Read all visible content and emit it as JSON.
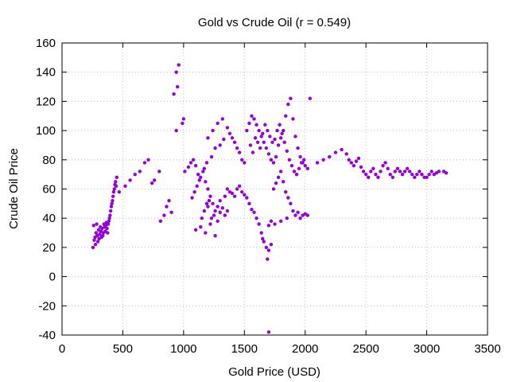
{
  "chart_data": {
    "type": "scatter",
    "title": "Gold vs Crude Oil (r = 0.549)",
    "xlabel": "Gold Price (USD)",
    "ylabel": "Crude Oil Price",
    "xlim": [
      0,
      3500
    ],
    "ylim": [
      -40,
      160
    ],
    "xticks": [
      "0",
      "500",
      "1000",
      "1500",
      "2000",
      "2500",
      "3000",
      "3500"
    ],
    "yticks": [
      "-40",
      "-20",
      "0",
      "20",
      "40",
      "60",
      "80",
      "100",
      "120",
      "140",
      "160"
    ],
    "grid": true,
    "series": [
      {
        "color": "#9400d3",
        "points": [
          [
            255,
            20
          ],
          [
            265,
            25
          ],
          [
            272,
            27
          ],
          [
            280,
            30
          ],
          [
            290,
            28
          ],
          [
            300,
            32
          ],
          [
            310,
            29
          ],
          [
            320,
            31
          ],
          [
            330,
            33
          ],
          [
            340,
            30
          ],
          [
            350,
            34
          ],
          [
            360,
            35
          ],
          [
            370,
            33
          ],
          [
            380,
            36
          ],
          [
            390,
            40
          ],
          [
            400,
            45
          ],
          [
            410,
            50
          ],
          [
            420,
            55
          ],
          [
            430,
            60
          ],
          [
            440,
            65
          ],
          [
            450,
            68
          ],
          [
            260,
            35
          ],
          [
            275,
            22
          ],
          [
            285,
            36
          ],
          [
            295,
            24
          ],
          [
            305,
            26
          ],
          [
            315,
            34
          ],
          [
            325,
            27
          ],
          [
            335,
            28
          ],
          [
            345,
            36
          ],
          [
            355,
            31
          ],
          [
            365,
            37
          ],
          [
            375,
            30
          ],
          [
            385,
            38
          ],
          [
            395,
            42
          ],
          [
            405,
            48
          ],
          [
            415,
            52
          ],
          [
            425,
            58
          ],
          [
            435,
            63
          ],
          [
            445,
            62
          ],
          [
            470,
            58
          ],
          [
            520,
            62
          ],
          [
            560,
            66
          ],
          [
            600,
            70
          ],
          [
            640,
            72
          ],
          [
            680,
            78
          ],
          [
            710,
            80
          ],
          [
            740,
            64
          ],
          [
            760,
            66
          ],
          [
            800,
            72
          ],
          [
            810,
            38
          ],
          [
            840,
            42
          ],
          [
            860,
            48
          ],
          [
            880,
            52
          ],
          [
            900,
            44
          ],
          [
            920,
            125
          ],
          [
            940,
            140
          ],
          [
            960,
            145
          ],
          [
            950,
            130
          ],
          [
            990,
            105
          ],
          [
            1000,
            108
          ],
          [
            940,
            100
          ],
          [
            1010,
            72
          ],
          [
            1040,
            75
          ],
          [
            1060,
            78
          ],
          [
            1080,
            80
          ],
          [
            1100,
            76
          ],
          [
            1120,
            70
          ],
          [
            1140,
            68
          ],
          [
            1160,
            72
          ],
          [
            1180,
            65
          ],
          [
            1200,
            60
          ],
          [
            1220,
            55
          ],
          [
            1240,
            50
          ],
          [
            1260,
            45
          ],
          [
            1280,
            48
          ],
          [
            1300,
            52
          ],
          [
            1320,
            47
          ],
          [
            1340,
            42
          ],
          [
            1360,
            45
          ],
          [
            1100,
            32
          ],
          [
            1140,
            34
          ],
          [
            1180,
            30
          ],
          [
            1220,
            36
          ],
          [
            1260,
            28
          ],
          [
            1200,
            95
          ],
          [
            1240,
            100
          ],
          [
            1280,
            105
          ],
          [
            1320,
            108
          ],
          [
            1360,
            102
          ],
          [
            1380,
            98
          ],
          [
            1400,
            95
          ],
          [
            1420,
            92
          ],
          [
            1440,
            88
          ],
          [
            1460,
            85
          ],
          [
            1480,
            80
          ],
          [
            1500,
            78
          ],
          [
            1200,
            48
          ],
          [
            1230,
            40
          ],
          [
            1250,
            42
          ],
          [
            1150,
            40
          ],
          [
            1170,
            45
          ],
          [
            1190,
            50
          ],
          [
            1210,
            52
          ],
          [
            1280,
            38
          ],
          [
            1300,
            44
          ],
          [
            1340,
            55
          ],
          [
            1360,
            60
          ],
          [
            1380,
            58
          ],
          [
            1400,
            57
          ],
          [
            1420,
            55
          ],
          [
            1440,
            60
          ],
          [
            1460,
            62
          ],
          [
            1480,
            58
          ],
          [
            1500,
            56
          ],
          [
            1520,
            54
          ],
          [
            1540,
            50
          ],
          [
            1560,
            46
          ],
          [
            1580,
            44
          ],
          [
            1600,
            40
          ],
          [
            1620,
            36
          ],
          [
            1640,
            30
          ],
          [
            1660,
            24
          ],
          [
            1680,
            20
          ],
          [
            1700,
            18
          ],
          [
            1720,
            22
          ],
          [
            1650,
            26
          ],
          [
            1690,
            12
          ],
          [
            1700,
            -38
          ],
          [
            1520,
            100
          ],
          [
            1540,
            105
          ],
          [
            1560,
            110
          ],
          [
            1580,
            108
          ],
          [
            1600,
            104
          ],
          [
            1620,
            100
          ],
          [
            1640,
            96
          ],
          [
            1660,
            92
          ],
          [
            1680,
            88
          ],
          [
            1700,
            84
          ],
          [
            1720,
            80
          ],
          [
            1740,
            78
          ],
          [
            1760,
            82
          ],
          [
            1780,
            90
          ],
          [
            1800,
            95
          ],
          [
            1820,
            100
          ],
          [
            1840,
            110
          ],
          [
            1860,
            118
          ],
          [
            1880,
            122
          ],
          [
            1900,
            108
          ],
          [
            1920,
            96
          ],
          [
            1940,
            88
          ],
          [
            1960,
            82
          ],
          [
            1980,
            78
          ],
          [
            2000,
            76
          ],
          [
            2020,
            74
          ],
          [
            2040,
            122
          ],
          [
            1740,
            60
          ],
          [
            1760,
            64
          ],
          [
            1780,
            68
          ],
          [
            1800,
            72
          ],
          [
            1820,
            65
          ],
          [
            1840,
            58
          ],
          [
            1860,
            54
          ],
          [
            1880,
            50
          ],
          [
            1900,
            45
          ],
          [
            1920,
            42
          ],
          [
            1940,
            44
          ],
          [
            1960,
            40
          ],
          [
            1980,
            42
          ],
          [
            2000,
            43
          ],
          [
            2020,
            42
          ],
          [
            1750,
            36
          ],
          [
            1800,
            38
          ],
          [
            1850,
            40
          ],
          [
            1700,
            35
          ],
          [
            1720,
            38
          ],
          [
            2100,
            78
          ],
          [
            2150,
            80
          ],
          [
            2200,
            82
          ],
          [
            2250,
            85
          ],
          [
            2300,
            87
          ],
          [
            2340,
            84
          ],
          [
            2360,
            80
          ],
          [
            2380,
            78
          ],
          [
            2400,
            76
          ],
          [
            2420,
            79
          ],
          [
            2440,
            81
          ],
          [
            2460,
            75
          ],
          [
            2480,
            72
          ],
          [
            2500,
            70
          ],
          [
            2520,
            68
          ],
          [
            2540,
            72
          ],
          [
            2560,
            74
          ],
          [
            2580,
            70
          ],
          [
            2600,
            68
          ],
          [
            2620,
            72
          ],
          [
            2640,
            76
          ],
          [
            2660,
            78
          ],
          [
            2680,
            74
          ],
          [
            2700,
            70
          ],
          [
            2720,
            68
          ],
          [
            2740,
            72
          ],
          [
            2760,
            74
          ],
          [
            2780,
            72
          ],
          [
            2800,
            70
          ],
          [
            2820,
            72
          ],
          [
            2840,
            74
          ],
          [
            2860,
            72
          ],
          [
            2880,
            70
          ],
          [
            2900,
            68
          ],
          [
            2920,
            70
          ],
          [
            2940,
            72
          ],
          [
            2960,
            70
          ],
          [
            2980,
            68
          ],
          [
            3000,
            68
          ],
          [
            3020,
            70
          ],
          [
            3040,
            72
          ],
          [
            3060,
            70
          ],
          [
            3080,
            71
          ],
          [
            3100,
            72
          ],
          [
            3140,
            72
          ],
          [
            3160,
            71
          ],
          [
            1550,
            90
          ],
          [
            1570,
            85
          ],
          [
            1590,
            95
          ],
          [
            1610,
            92
          ],
          [
            1630,
            88
          ],
          [
            1650,
            98
          ],
          [
            1670,
            104
          ],
          [
            1690,
            100
          ],
          [
            1710,
            96
          ],
          [
            1730,
            92
          ],
          [
            1750,
            94
          ],
          [
            1770,
            100
          ],
          [
            1790,
            104
          ],
          [
            1810,
            98
          ],
          [
            1830,
            92
          ],
          [
            1850,
            86
          ],
          [
            1870,
            80
          ],
          [
            1890,
            76
          ],
          [
            1910,
            72
          ],
          [
            1930,
            70
          ],
          [
            1950,
            74
          ],
          [
            1970,
            78
          ],
          [
            1990,
            80
          ],
          [
            1300,
            90
          ],
          [
            1330,
            94
          ],
          [
            1260,
            88
          ],
          [
            1230,
            82
          ],
          [
            1190,
            78
          ],
          [
            1170,
            74
          ],
          [
            1130,
            66
          ],
          [
            1110,
            62
          ],
          [
            1090,
            58
          ],
          [
            1070,
            54
          ]
        ]
      }
    ]
  }
}
